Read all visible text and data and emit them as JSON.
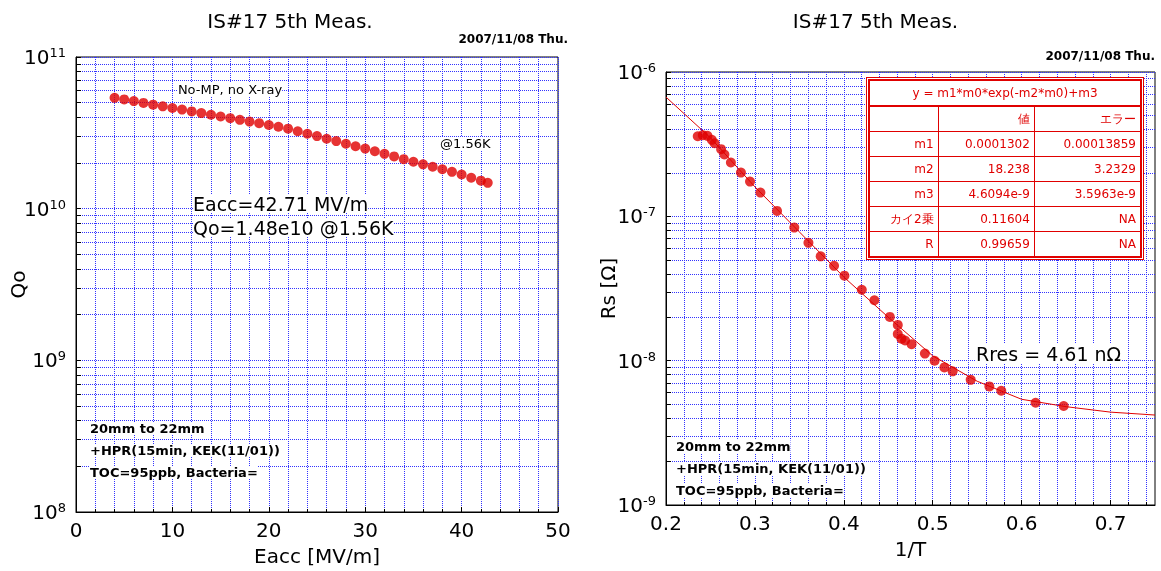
{
  "chart_data": [
    {
      "type": "scatter",
      "title": "IS#17 5th Meas.",
      "xlabel": "Eacc [MV/m]",
      "ylabel": "Qo",
      "log": "y",
      "grid": true,
      "marker": "circle",
      "xlim": [
        0,
        50
      ],
      "xticks": [
        0,
        10,
        20,
        30,
        40,
        50
      ],
      "ylim": [
        100000000.0,
        100000000000.0
      ],
      "yticks": [
        {
          "value": 100000000.0,
          "label": "10$^{8}$"
        },
        {
          "value": 200000000.0,
          "label": null
        },
        {
          "value": 300000000.0,
          "label": null
        },
        {
          "value": 400000000.0,
          "label": null
        },
        {
          "value": 500000000.0,
          "label": null
        },
        {
          "value": 600000000.0,
          "label": null
        },
        {
          "value": 700000000.0,
          "label": null
        },
        {
          "value": 800000000.0,
          "label": null
        },
        {
          "value": 900000000.0,
          "label": null
        },
        {
          "value": 1000000000.0,
          "label": "10$^{9}$"
        },
        {
          "value": 2000000000.0,
          "label": null
        },
        {
          "value": 3000000000.0,
          "label": null
        },
        {
          "value": 4000000000.0,
          "label": null
        },
        {
          "value": 5000000000.0,
          "label": null
        },
        {
          "value": 6000000000.0,
          "label": null
        },
        {
          "value": 7000000000.0,
          "label": null
        },
        {
          "value": 8000000000.0,
          "label": null
        },
        {
          "value": 9000000000.0,
          "label": null
        },
        {
          "value": 10000000000.0,
          "label": "10$^{10}$"
        },
        {
          "value": 20000000000.0,
          "label": null
        },
        {
          "value": 30000000000.0,
          "label": null
        },
        {
          "value": 40000000000.0,
          "label": null
        },
        {
          "value": 50000000000.0,
          "label": null
        },
        {
          "value": 60000000000.0,
          "label": null
        },
        {
          "value": 70000000000.0,
          "label": null
        },
        {
          "value": 80000000000.0,
          "label": null
        },
        {
          "value": 90000000000.0,
          "label": null
        },
        {
          "value": 100000000000.0,
          "label": "10$^{11}$"
        }
      ],
      "series": [
        {
          "color": "#e00000",
          "x": [
            4,
            5,
            6,
            7,
            8,
            9,
            10,
            11,
            12,
            13,
            14,
            15,
            16,
            17,
            18,
            19,
            20,
            21,
            22,
            23,
            24,
            25,
            26,
            27,
            28,
            29,
            30,
            31,
            32,
            33,
            34,
            35,
            36,
            37,
            38,
            39,
            40,
            41,
            42,
            42.71
          ],
          "values": [
            53800000000.0,
            52500000000.0,
            51200000000.0,
            49800000000.0,
            48500000000.0,
            47300000000.0,
            46100000000.0,
            45000000000.0,
            43800000000.0,
            42700000000.0,
            41600000000.0,
            40500000000.0,
            39500000000.0,
            38500000000.0,
            37500000000.0,
            36600000000.0,
            35600000000.0,
            34700000000.0,
            33700000000.0,
            32400000000.0,
            31200000000.0,
            30100000000.0,
            28900000000.0,
            27900000000.0,
            26800000000.0,
            25800000000.0,
            24900000000.0,
            23900000000.0,
            23000000000.0,
            22100000000.0,
            21200000000.0,
            20400000000.0,
            19600000000.0,
            18900000000.0,
            18200000000.0,
            17500000000.0,
            16800000000.0,
            16000000000.0,
            15300000000.0,
            14800000000.0
          ]
        }
      ],
      "annotations": [
        "2007/11/08 Thu.",
        "No-MP, no X-ray",
        "@1.56K",
        "Eacc=42.71 MV/m",
        "Qo=1.48e10 @1.56K",
        "20mm to 22mm",
        "+HPR(15min, KEK(11/01))",
        "TOC=95ppb, Bacteria="
      ]
    },
    {
      "type": "scatter",
      "title": "IS#17 5th Meas.",
      "xlabel": "1/T",
      "ylabel": "Rs [Ω]",
      "log": "y",
      "grid": true,
      "marker": "circle",
      "xlim": [
        0.2,
        0.75
      ],
      "xticks": [
        0.2,
        0.3,
        0.4,
        0.5,
        0.6,
        0.7
      ],
      "ylim": [
        1e-09,
        1e-06
      ],
      "yticks": [
        {
          "value": 1e-09,
          "label": "10$^{-9}$"
        },
        {
          "value": 2e-09,
          "label": null
        },
        {
          "value": 3e-09,
          "label": null
        },
        {
          "value": 4e-09,
          "label": null
        },
        {
          "value": 5e-09,
          "label": null
        },
        {
          "value": 6e-09,
          "label": null
        },
        {
          "value": 7e-09,
          "label": null
        },
        {
          "value": 8e-09,
          "label": null
        },
        {
          "value": 9e-09,
          "label": null
        },
        {
          "value": 1e-08,
          "label": "10$^{-8}$"
        },
        {
          "value": 2e-08,
          "label": null
        },
        {
          "value": 3e-08,
          "label": null
        },
        {
          "value": 4e-08,
          "label": null
        },
        {
          "value": 5e-08,
          "label": null
        },
        {
          "value": 6e-08,
          "label": null
        },
        {
          "value": 7e-08,
          "label": null
        },
        {
          "value": 8e-08,
          "label": null
        },
        {
          "value": 9e-08,
          "label": null
        },
        {
          "value": 1e-07,
          "label": "10$^{-7}$"
        },
        {
          "value": 2e-07,
          "label": null
        },
        {
          "value": 3e-07,
          "label": null
        },
        {
          "value": 4e-07,
          "label": null
        },
        {
          "value": 5e-07,
          "label": null
        },
        {
          "value": 6e-07,
          "label": null
        },
        {
          "value": 7e-07,
          "label": null
        },
        {
          "value": 8e-07,
          "label": null
        },
        {
          "value": 9e-07,
          "label": null
        },
        {
          "value": 1e-06,
          "label": "10$^{-6}$"
        }
      ],
      "series": [
        {
          "type": "line",
          "marker": "none",
          "color": "#e00000",
          "x": [
            0.2,
            0.25,
            0.3,
            0.35,
            0.4,
            0.45,
            0.5,
            0.55,
            0.6,
            0.65,
            0.7,
            0.75
          ],
          "values": [
            6.7e-07,
            3.5e-07,
            1.6e-07,
            7.8e-08,
            3.8e-08,
            2e-08,
            1.08e-08,
            7.2e-09,
            5.4e-09,
            4.8e-09,
            4.4e-09,
            4.2e-09
          ]
        },
        {
          "color": "#e00000",
          "x": [
            0.2357,
            0.2414,
            0.2466,
            0.2515,
            0.2547,
            0.262,
            0.2657,
            0.273,
            0.2843,
            0.2945,
            0.3062,
            0.3249,
            0.3443,
            0.3602,
            0.374,
            0.389,
            0.4007,
            0.4202,
            0.4344,
            0.4518,
            0.4607,
            0.4607,
            0.4648,
            0.4689,
            0.4762,
            0.4912,
            0.5021,
            0.5131,
            0.5224,
            0.5427,
            0.5637,
            0.5771,
            0.6157,
            0.6473
          ],
          "values": [
            3.59e-07,
            3.65e-07,
            3.61e-07,
            3.39e-07,
            3.21e-07,
            2.92e-07,
            2.68e-07,
            2.36e-07,
            2.01e-07,
            1.74e-07,
            1.46e-07,
            1.09e-07,
            8.36e-08,
            6.55e-08,
            5.28e-08,
            4.54e-08,
            3.88e-08,
            3.1e-08,
            2.62e-08,
            2.01e-08,
            1.77e-08,
            1.53e-08,
            1.42e-08,
            1.38e-08,
            1.3e-08,
            1.12e-08,
            9.98e-09,
            8.98e-09,
            8.43e-09,
            7.37e-09,
            6.63e-09,
            6.19e-09,
            5.11e-09,
            4.85e-09
          ]
        }
      ],
      "annotations": [
        "2007/11/08 Thu.",
        "Rres = 4.61 nΩ",
        "20mm to 22mm",
        "+HPR(15min, KEK(11/01))",
        "TOC=95ppb, Bacteria="
      ]
    },
    {
      "type": "other",
      "title": "y = m1*m0*exp(-m2*m0)+m3",
      "annotations": [
        "値",
        "エラー",
        "m1",
        "0.0001302",
        "0.00013859",
        "m2",
        "18.238",
        "3.2329",
        "m3",
        "4.6094e-9",
        "3.5963e-9",
        "カイ2乗",
        "0.11604",
        "NA",
        "R",
        "0.99659",
        "NA"
      ]
    }
  ]
}
